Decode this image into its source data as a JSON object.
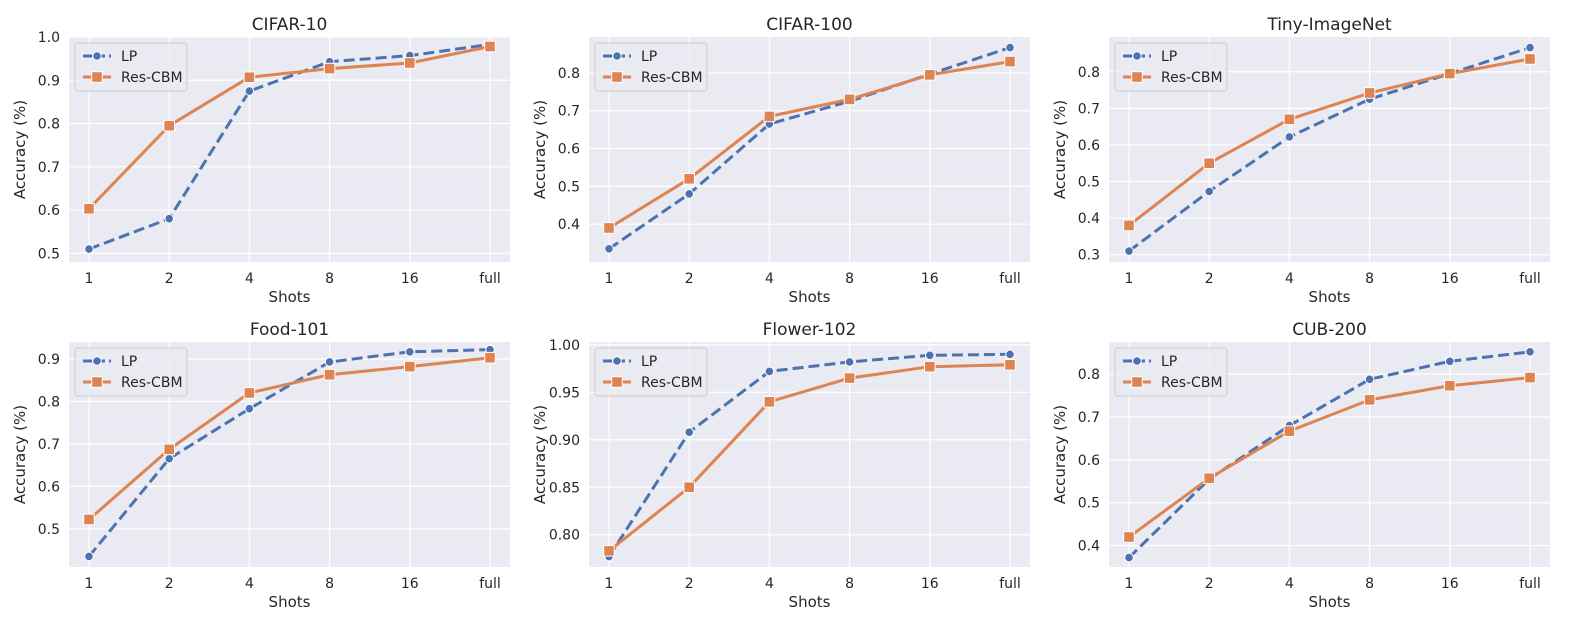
{
  "colors": {
    "plot_bg": "#eaeaf2",
    "grid": "#ffffff",
    "LP": "#4c72b0",
    "Res-CBM": "#dd8452",
    "text": "#262626"
  },
  "chart_data": [
    {
      "type": "line",
      "title": "CIFAR-10",
      "xlabel": "Shots",
      "ylabel": "Accuracy (%)",
      "categories": [
        "1",
        "2",
        "4",
        "8",
        "16",
        "full"
      ],
      "ylim": [
        0.48,
        1.0
      ],
      "yticks": [
        0.5,
        0.6,
        0.7,
        0.8,
        0.9,
        1.0
      ],
      "ytick_labels": [
        "0.5",
        "0.6",
        "0.7",
        "0.8",
        "0.9",
        "1.0"
      ],
      "grid": true,
      "legend_position": "upper-left",
      "series": [
        {
          "name": "LP",
          "style": "dashed",
          "marker": "circle",
          "values": [
            0.51,
            0.58,
            0.875,
            0.943,
            0.957,
            0.983
          ]
        },
        {
          "name": "Res-CBM",
          "style": "solid",
          "marker": "square",
          "values": [
            0.603,
            0.795,
            0.907,
            0.927,
            0.94,
            0.978
          ]
        }
      ]
    },
    {
      "type": "line",
      "title": "CIFAR-100",
      "xlabel": "Shots",
      "ylabel": "Accuracy (%)",
      "categories": [
        "1",
        "2",
        "4",
        "8",
        "16",
        "full"
      ],
      "ylim": [
        0.3,
        0.895
      ],
      "yticks": [
        0.4,
        0.5,
        0.6,
        0.7,
        0.8
      ],
      "ytick_labels": [
        "0.4",
        "0.5",
        "0.6",
        "0.7",
        "0.8"
      ],
      "grid": true,
      "legend_position": "upper-left",
      "series": [
        {
          "name": "LP",
          "style": "dashed",
          "marker": "circle",
          "values": [
            0.335,
            0.48,
            0.665,
            0.725,
            0.797,
            0.867
          ]
        },
        {
          "name": "Res-CBM",
          "style": "solid",
          "marker": "square",
          "values": [
            0.39,
            0.52,
            0.685,
            0.73,
            0.795,
            0.83
          ]
        }
      ]
    },
    {
      "type": "line",
      "title": "Tiny-ImageNet",
      "xlabel": "Shots",
      "ylabel": "Accuracy (%)",
      "categories": [
        "1",
        "2",
        "4",
        "8",
        "16",
        "full"
      ],
      "ylim": [
        0.28,
        0.895
      ],
      "yticks": [
        0.3,
        0.4,
        0.5,
        0.6,
        0.7,
        0.8
      ],
      "ytick_labels": [
        "0.3",
        "0.4",
        "0.5",
        "0.6",
        "0.7",
        "0.8"
      ],
      "grid": true,
      "legend_position": "upper-left",
      "series": [
        {
          "name": "LP",
          "style": "dashed",
          "marker": "circle",
          "values": [
            0.31,
            0.473,
            0.622,
            0.725,
            0.795,
            0.866
          ]
        },
        {
          "name": "Res-CBM",
          "style": "solid",
          "marker": "square",
          "values": [
            0.38,
            0.55,
            0.67,
            0.742,
            0.795,
            0.835
          ]
        }
      ]
    },
    {
      "type": "line",
      "title": "Food-101",
      "xlabel": "Shots",
      "ylabel": "Accuracy (%)",
      "categories": [
        "1",
        "2",
        "4",
        "8",
        "16",
        "full"
      ],
      "ylim": [
        0.41,
        0.94
      ],
      "yticks": [
        0.5,
        0.6,
        0.7,
        0.8,
        0.9
      ],
      "ytick_labels": [
        "0.5",
        "0.6",
        "0.7",
        "0.8",
        "0.9"
      ],
      "grid": true,
      "legend_position": "upper-left",
      "series": [
        {
          "name": "LP",
          "style": "dashed",
          "marker": "circle",
          "values": [
            0.435,
            0.665,
            0.783,
            0.893,
            0.917,
            0.922
          ]
        },
        {
          "name": "Res-CBM",
          "style": "solid",
          "marker": "square",
          "values": [
            0.522,
            0.687,
            0.82,
            0.863,
            0.882,
            0.903
          ]
        }
      ]
    },
    {
      "type": "line",
      "title": "Flower-102",
      "xlabel": "Shots",
      "ylabel": "Accuracy (%)",
      "categories": [
        "1",
        "2",
        "4",
        "8",
        "16",
        "full"
      ],
      "ylim": [
        0.766,
        1.003
      ],
      "yticks": [
        0.8,
        0.85,
        0.9,
        0.95,
        1.0
      ],
      "ytick_labels": [
        "0.80",
        "0.85",
        "0.90",
        "0.95",
        "1.00"
      ],
      "grid": true,
      "legend_position": "upper-left",
      "series": [
        {
          "name": "LP",
          "style": "dashed",
          "marker": "circle",
          "values": [
            0.777,
            0.908,
            0.972,
            0.982,
            0.989,
            0.99
          ]
        },
        {
          "name": "Res-CBM",
          "style": "solid",
          "marker": "square",
          "values": [
            0.783,
            0.85,
            0.94,
            0.965,
            0.977,
            0.979
          ]
        }
      ]
    },
    {
      "type": "line",
      "title": "CUB-200",
      "xlabel": "Shots",
      "ylabel": "Accuracy (%)",
      "categories": [
        "1",
        "2",
        "4",
        "8",
        "16",
        "full"
      ],
      "ylim": [
        0.35,
        0.875
      ],
      "yticks": [
        0.4,
        0.5,
        0.6,
        0.7,
        0.8
      ],
      "ytick_labels": [
        "0.4",
        "0.5",
        "0.6",
        "0.7",
        "0.8"
      ],
      "grid": true,
      "legend_position": "upper-left",
      "series": [
        {
          "name": "LP",
          "style": "dashed",
          "marker": "circle",
          "values": [
            0.372,
            0.555,
            0.68,
            0.788,
            0.83,
            0.852
          ]
        },
        {
          "name": "Res-CBM",
          "style": "solid",
          "marker": "square",
          "values": [
            0.42,
            0.557,
            0.667,
            0.74,
            0.773,
            0.792
          ]
        }
      ]
    }
  ]
}
